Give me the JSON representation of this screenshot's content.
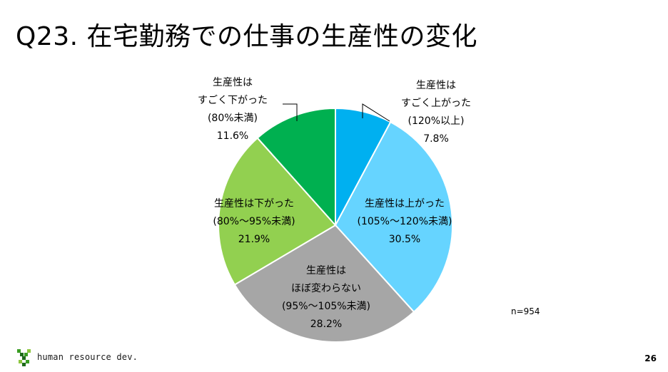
{
  "title": "Q23. 在宅勤務での仕事の生産性の変化",
  "note": "n=954",
  "page_number": "26",
  "logo": {
    "text": "human resource dev.",
    "colors": [
      "#3a9d23",
      "#8cc63f",
      "#1e6b1a"
    ]
  },
  "chart_data": {
    "type": "pie",
    "title": "",
    "slices": [
      {
        "label_lines": [
          "生産性は",
          "すごく上がった",
          "(120%以上)"
        ],
        "value": 7.8,
        "value_label": "7.8%",
        "color": "#00b0f0"
      },
      {
        "label_lines": [
          "生産性は上がった",
          "(105%～120%未満)"
        ],
        "value": 30.5,
        "value_label": "30.5%",
        "color": "#66d4ff"
      },
      {
        "label_lines": [
          "生産性は",
          "ほぼ変わらない",
          "(95%～105%未満)"
        ],
        "value": 28.2,
        "value_label": "28.2%",
        "color": "#a6a6a6"
      },
      {
        "label_lines": [
          "生産性は下がった",
          "(80%～95%未満)"
        ],
        "value": 21.9,
        "value_label": "21.9%",
        "color": "#92d050"
      },
      {
        "label_lines": [
          "生産性は",
          "すごく下がった",
          "(80%未満)"
        ],
        "value": 11.6,
        "value_label": "11.6%",
        "color": "#00b050"
      }
    ],
    "start_angle_deg": 0,
    "direction": "clockwise"
  }
}
